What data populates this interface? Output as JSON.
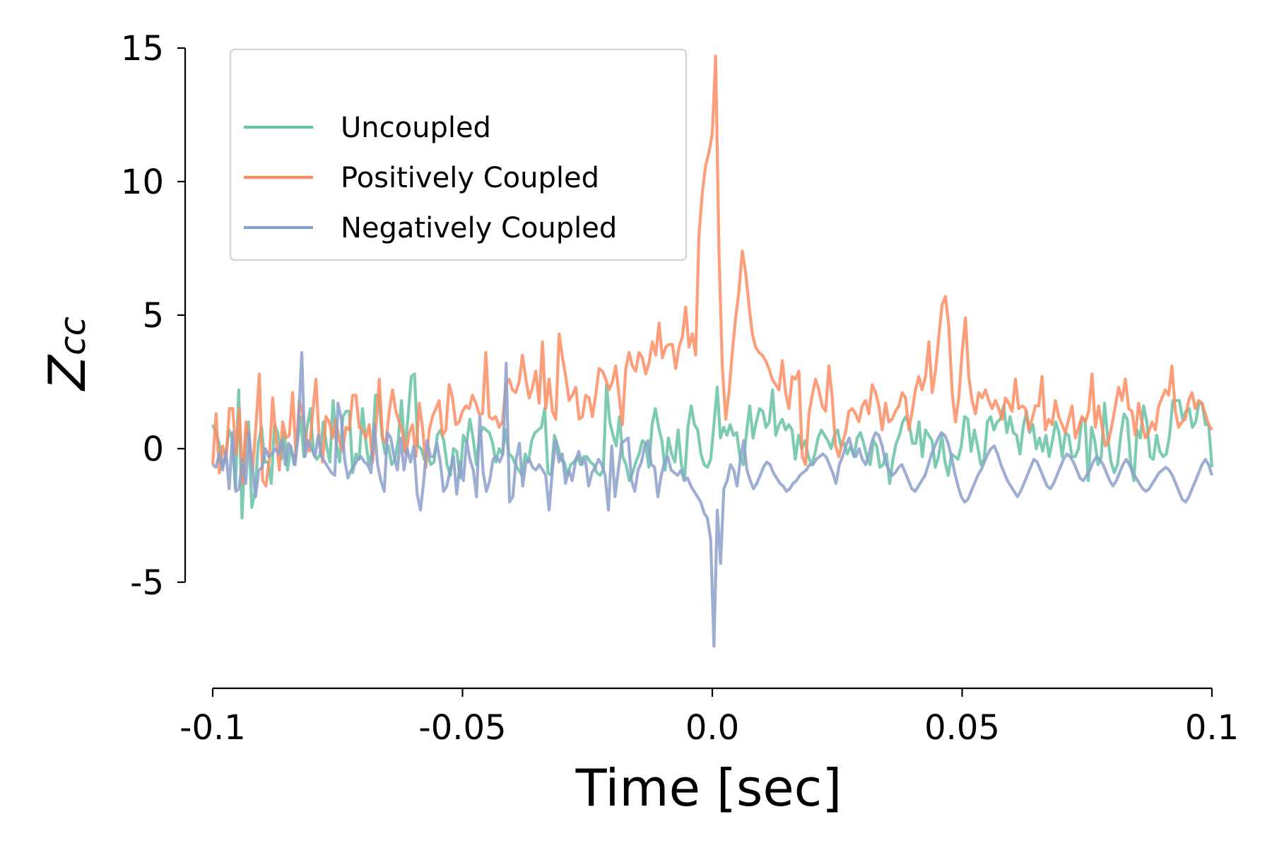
{
  "chart_data": {
    "type": "line",
    "title": "",
    "xlabel": "Time [sec]",
    "ylabel": "Z",
    "ylabel_subscript": "cc",
    "xlim": [
      -0.1,
      0.1
    ],
    "ylim": [
      -9,
      15
    ],
    "xticks": [
      -0.1,
      -0.05,
      0.0,
      0.05,
      0.1
    ],
    "xtick_labels": [
      "-0.1",
      "-0.05",
      "0.0",
      "0.05",
      "0.1"
    ],
    "yticks": [
      15,
      10,
      5,
      0,
      -5
    ],
    "ytick_labels": [
      "15",
      "10",
      "5",
      "0",
      "-5"
    ],
    "grid": false,
    "legend_position": "top-left",
    "x_start": -0.1,
    "x_step": 0.001,
    "series": [
      {
        "name": "Uncoupled",
        "color": "#66c2a5",
        "values": [
          0.9,
          0.6,
          0.2,
          -0.7,
          -0.3,
          0.7,
          0.4,
          -1.5,
          2.2,
          -2.6,
          0.3,
          1.0,
          -2.2,
          -1.6,
          0.2,
          0.8,
          -0.5,
          -0.5,
          -1.3,
          0.9,
          0.6,
          -0.4,
          0.6,
          -0.8,
          0.1,
          -0.6,
          0.2,
          1.2,
          -0.3,
          0.8,
          1.5,
          -0.2,
          -0.4,
          -0.2,
          1.0,
          0.1,
          -0.5,
          1.8,
          0.2,
          -0.5,
          1.2,
          1.4,
          1.4,
          -0.9,
          -0.2,
          -0.4,
          1.5,
          0.3,
          -0.6,
          -0.1,
          2.0,
          2.0,
          0.5,
          -0.2,
          0.1,
          -0.6,
          -0.4,
          0.3,
          1.8,
          -0.1,
          1.2,
          2.7,
          2.8,
          0.1,
          0.0,
          -0.4,
          -0.2,
          -0.6,
          -0.5,
          0.5,
          0.7,
          0.3,
          -0.6,
          -1.0,
          0.0,
          -0.1,
          -1.1,
          0.5,
          0.2,
          1.1,
          0.4,
          -0.6,
          0.5,
          0.8,
          0.7,
          0.6,
          0.2,
          -0.5,
          0.0,
          -0.2,
          0.7,
          -0.2,
          -0.3,
          -0.6,
          -0.8,
          -1.0,
          -0.2,
          -0.5,
          0.3,
          0.6,
          0.7,
          0.8,
          1.5,
          -0.9,
          -1.0,
          0.5,
          0.1,
          -0.4,
          -0.5,
          -1.0,
          -0.6,
          -0.5,
          -0.3,
          -0.6,
          -0.3,
          -0.3,
          -0.5,
          -0.6,
          -0.9,
          -1.0,
          -0.8,
          2.4,
          1.0,
          0.5,
          0.1,
          1.2,
          -0.3,
          -0.6,
          -1.2,
          -0.9,
          -0.5,
          -0.2,
          0.3,
          0.2,
          -0.7,
          0.9,
          1.5,
          0.8,
          0.3,
          -0.8,
          0.4,
          -0.2,
          -0.5,
          0.7,
          -0.6,
          -1.1,
          0.8,
          1.6,
          0.9,
          0.7,
          -0.2,
          -0.6,
          -0.7,
          -0.4,
          0.9,
          2.3,
          0.4,
          0.8,
          0.5,
          0.9,
          0.5,
          0.6,
          -0.3,
          -0.6,
          0.6,
          1.6,
          0.4,
          1.0,
          1.5,
          1.4,
          0.8,
          1.0,
          2.2,
          0.5,
          0.9,
          1.1,
          0.7,
          0.9,
          0.7,
          -0.4,
          0.5,
          0.0,
          0.3,
          -0.3,
          -0.6,
          -0.2,
          0.4,
          0.7,
          0.5,
          0.3,
          0.0,
          0.5,
          0.7,
          0.1,
          0.2,
          -0.2,
          0.1,
          -0.3,
          0.4,
          0.6,
          0.2,
          -0.3,
          -0.6,
          0.3,
          0.1,
          -0.7,
          -0.6,
          -0.2,
          -1.3,
          -0.4,
          0.2,
          0.5,
          1.0,
          1.2,
          0.9,
          0.2,
          0.2,
          1.0,
          -0.3,
          0.7,
          0.5,
          0.3,
          -0.7,
          -0.3,
          0.5,
          -0.5,
          -1.0,
          -0.2,
          -0.3,
          -0.4,
          0.1,
          1.2,
          1.1,
          -0.1,
          0.7,
          0.1,
          -0.6,
          -0.4,
          1.0,
          1.2,
          0.7,
          1.0,
          1.1,
          1.6,
          0.6,
          1.2,
          0.6,
          0.5,
          -0.2,
          0.8,
          1.4,
          0.6,
          0.9,
          0.0,
          0.4,
          -0.1,
          0.5,
          -0.3,
          0.3,
          1.0,
          0.6,
          -0.3,
          0.6,
          0.5,
          -0.3,
          -0.3,
          0.0,
          1.1,
          1.1,
          -1.2,
          0.8,
          0.3,
          -0.6,
          -0.3,
          1.7,
          0.4,
          -0.5,
          -0.9,
          -0.6,
          0.5,
          1.3,
          1.1,
          -0.5,
          -1.2,
          0.7,
          0.4,
          1.6,
          1.0,
          -0.3,
          -0.4,
          0.5,
          -0.1,
          -0.3,
          -0.2,
          0.5,
          1.8,
          1.8,
          1.8,
          1.1,
          1.4,
          1.5,
          0.8,
          1.0,
          1.7,
          1.7,
          0.9,
          0.9,
          -0.7
        ]
      },
      {
        "name": "Positively Coupled",
        "color": "#fc8d62",
        "values": [
          -0.6,
          1.3,
          -0.9,
          0.1,
          -0.4,
          1.5,
          1.5,
          -0.2,
          1.5,
          -1.3,
          1.0,
          0.2,
          -0.8,
          0.9,
          2.8,
          -1.2,
          -1.4,
          -0.4,
          1.9,
          0.4,
          -0.8,
          1.0,
          0.4,
          0.5,
          2.1,
          -0.3,
          1.8,
          1.3,
          0.4,
          -0.1,
          1.3,
          2.6,
          0.3,
          -0.5,
          1.2,
          1.0,
          0.4,
          1.1,
          0.3,
          -0.1,
          0.8,
          0.7,
          2.0,
          2.0,
          0.8,
          0.7,
          0.4,
          0.9,
          -0.5,
          0.8,
          2.6,
          0.4,
          0.2,
          1.4,
          2.2,
          1.4,
          1.0,
          0.6,
          -0.2,
          0.6,
          0.9,
          -0.3,
          1.7,
          0.8,
          -0.7,
          0.7,
          1.2,
          1.5,
          1.8,
          0.5,
          0.7,
          2.4,
          1.9,
          0.9,
          1.0,
          1.4,
          1.6,
          1.5,
          2.0,
          1.7,
          1.3,
          1.3,
          3.6,
          1.2,
          1.1,
          1.2,
          0.8,
          1.0,
          2.4,
          2.6,
          2.2,
          2.1,
          2.5,
          3.5,
          2.6,
          1.9,
          2.3,
          2.9,
          1.7,
          4.0,
          1.5,
          2.6,
          1.4,
          1.1,
          4.3,
          3.4,
          2.7,
          1.8,
          2.0,
          2.3,
          1.1,
          1.2,
          2.0,
          1.9,
          1.2,
          2.0,
          3.0,
          2.9,
          2.6,
          2.2,
          2.5,
          3.1,
          2.0,
          0.9,
          3.0,
          3.6,
          3.1,
          2.9,
          3.6,
          3.4,
          2.8,
          3.2,
          4.0,
          3.5,
          4.7,
          3.4,
          3.8,
          3.9,
          3.9,
          3.0,
          3.8,
          4.2,
          5.3,
          3.8,
          4.3,
          3.5,
          8.0,
          9.6,
          10.6,
          11.1,
          11.8,
          14.7,
          7.4,
          3.1,
          1.1,
          2.1,
          3.6,
          4.9,
          5.9,
          7.4,
          6.6,
          5.4,
          4.3,
          3.8,
          3.6,
          3.5,
          3.3,
          3.0,
          2.6,
          2.4,
          2.2,
          3.3,
          2.1,
          1.5,
          2.7,
          2.6,
          2.9,
          -0.3,
          -0.6,
          1.3,
          2.0,
          2.6,
          2.2,
          1.6,
          1.4,
          3.1,
          1.9,
          0.1,
          -0.3,
          0.2,
          0.6,
          1.4,
          1.5,
          1.3,
          1.0,
          1.6,
          1.8,
          1.3,
          2.4,
          2.1,
          1.6,
          0.7,
          1.7,
          1.0,
          1.1,
          1.4,
          1.6,
          2.1,
          1.9,
          0.7,
          1.4,
          2.2,
          2.7,
          2.2,
          2.7,
          4.0,
          2.1,
          2.9,
          4.2,
          5.4,
          5.7,
          4.6,
          2.1,
          1.0,
          1.9,
          3.6,
          4.9,
          2.7,
          1.8,
          1.3,
          2.1,
          1.9,
          2.2,
          1.8,
          1.5,
          1.8,
          1.5,
          1.1,
          1.9,
          1.7,
          1.4,
          2.6,
          1.5,
          1.6,
          1.5,
          0.7,
          1.1,
          1.6,
          1.6,
          2.7,
          0.7,
          1.1,
          0.9,
          1.8,
          1.2,
          0.9,
          0.6,
          1.1,
          1.6,
          0.4,
          0.8,
          1.2,
          1.0,
          1.4,
          2.8,
          0.8,
          1.6,
          0.8,
          0.1,
          0.3,
          0.9,
          1.6,
          2.3,
          1.8,
          2.6,
          1.5,
          1.4,
          0.5,
          1.7,
          1.0,
          0.4,
          0.6,
          1.0,
          0.7,
          1.6,
          1.9,
          2.2,
          2.0,
          3.1,
          1.4,
          0.8,
          1.0,
          1.1,
          1.8,
          2.1,
          1.5,
          1.8,
          1.7,
          1.3,
          0.9,
          0.7
        ]
      },
      {
        "name": "Negatively Coupled",
        "color": "#8da0cb",
        "values": [
          -0.6,
          -0.7,
          -0.2,
          -0.8,
          -0.1,
          -1.5,
          0.6,
          -1.6,
          -1.5,
          -0.4,
          -1.3,
          0.6,
          -0.7,
          -1.8,
          -0.8,
          -0.7,
          0.0,
          -0.3,
          -0.2,
          0.0,
          -0.2,
          0.3,
          -0.6,
          0.2,
          -0.1,
          -0.6,
          0.9,
          3.6,
          -0.3,
          0.3,
          0.0,
          -0.3,
          0.5,
          -0.3,
          -0.5,
          -0.7,
          -0.9,
          -1.0,
          1.7,
          1.1,
          -0.4,
          -1.1,
          -0.8,
          -0.6,
          -0.4,
          -0.3,
          -0.5,
          -0.6,
          -0.9,
          0.9,
          -0.6,
          -1.2,
          -1.6,
          0.6,
          0.4,
          -0.3,
          -0.8,
          0.4,
          -0.8,
          0.0,
          -0.5,
          0.1,
          -1.7,
          -2.3,
          -1.2,
          0.3,
          -0.3,
          -0.3,
          0.2,
          -0.5,
          -1.6,
          -1.4,
          -0.8,
          -0.3,
          -1.7,
          -0.5,
          -1.2,
          0.3,
          -0.4,
          -0.8,
          -1.8,
          1.2,
          -0.9,
          -1.6,
          -1.2,
          -0.4,
          -0.3,
          -0.5,
          -0.2,
          3.2,
          -2.0,
          -1.8,
          -0.4,
          0.2,
          -1.4,
          -0.5,
          -0.4,
          -0.7,
          -0.8,
          -0.6,
          -0.8,
          -1.0,
          -2.3,
          -0.8,
          0.3,
          -0.5,
          -0.2,
          -1.3,
          -0.8,
          -1.2,
          -0.5,
          -0.1,
          -0.6,
          -0.4,
          -1.4,
          -0.9,
          -0.7,
          -0.4,
          -0.6,
          -1.0,
          -2.3,
          0.1,
          -1.8,
          -0.8,
          0.2,
          0.3,
          0.4,
          -1.2,
          -1.6,
          -0.8,
          -0.5,
          0.1,
          0.3,
          -0.6,
          -0.7,
          -1.8,
          -1.0,
          -0.5,
          -0.3,
          -0.8,
          -0.9,
          -1.0,
          -0.8,
          -1.2,
          -1.1,
          -1.4,
          -1.6,
          -1.8,
          -2.0,
          -2.4,
          -2.6,
          -3.4,
          -7.4,
          -2.3,
          -4.3,
          -1.5,
          -1.2,
          -0.6,
          -0.8,
          -1.4,
          -0.4,
          0.3,
          -0.8,
          -1.2,
          -1.5,
          -1.3,
          -1.0,
          -0.7,
          -0.5,
          -0.6,
          -0.9,
          -1.1,
          -1.3,
          -1.4,
          -1.6,
          -1.5,
          -1.3,
          -1.2,
          -1.0,
          -0.9,
          -0.8,
          -0.6,
          -0.6,
          -0.4,
          -0.3,
          -0.2,
          -0.3,
          -0.6,
          -0.9,
          -1.3,
          -0.6,
          -0.3,
          0.1,
          0.4,
          -0.1,
          -0.3,
          0.0,
          -0.4,
          -0.6,
          -0.2,
          0.3,
          0.6,
          0.5,
          0.1,
          -0.5,
          -0.8,
          -1.0,
          -0.9,
          -0.7,
          -0.6,
          -0.9,
          -1.2,
          -1.5,
          -1.6,
          -1.4,
          -1.2,
          -1.0,
          -0.6,
          -0.2,
          0.1,
          0.4,
          0.6,
          0.5,
          0.2,
          -0.3,
          -0.9,
          -1.4,
          -1.8,
          -2.0,
          -1.9,
          -1.6,
          -1.3,
          -1.0,
          -0.8,
          -0.5,
          -0.2,
          0.0,
          0.1,
          -0.2,
          -0.6,
          -0.9,
          -1.2,
          -1.4,
          -1.6,
          -1.8,
          -1.6,
          -1.3,
          -1.0,
          -0.7,
          -0.4,
          -0.5,
          -0.8,
          -1.1,
          -1.4,
          -1.5,
          -1.3,
          -1.0,
          -0.7,
          -0.4,
          -0.2,
          -0.3,
          -0.5,
          -0.8,
          -1.1,
          -1.2,
          -1.0,
          -0.8,
          -0.5,
          -0.3,
          -0.4,
          -0.6,
          -0.9,
          -1.2,
          -1.4,
          -1.2,
          -0.9,
          -0.6,
          -0.4,
          -0.6,
          -0.9,
          -1.1,
          -1.3,
          -1.5,
          -1.6,
          -1.5,
          -1.3,
          -1.1,
          -0.9,
          -0.8,
          -0.7,
          -0.8,
          -1.0,
          -1.3,
          -1.6,
          -1.9,
          -2.0,
          -1.8,
          -1.5,
          -1.2,
          -0.9,
          -0.6,
          -0.4,
          -0.6,
          -1.0
        ]
      }
    ]
  }
}
